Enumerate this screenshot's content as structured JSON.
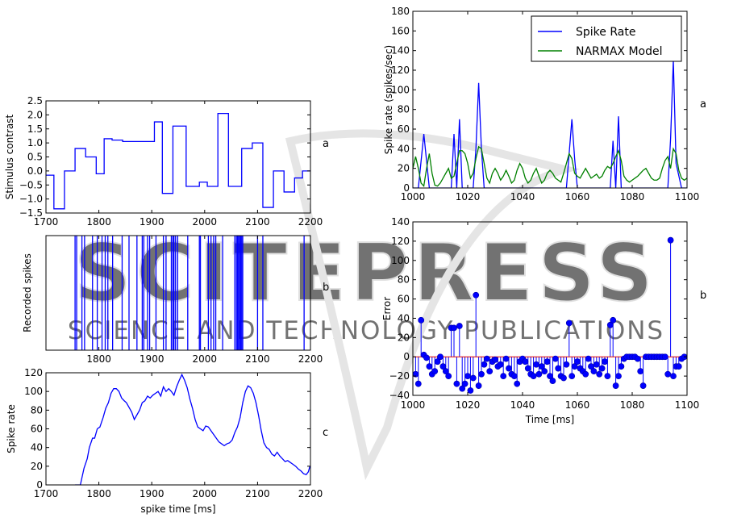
{
  "watermark": {
    "main": "SCITEPRESS",
    "sub": "SCIENCE AND TECHNOLOGY PUBLICATIONS"
  },
  "colors": {
    "blue": "#0000ff",
    "green": "#008000",
    "watermark": "#c8c8c8"
  },
  "chart_data": [
    {
      "id": "left-a",
      "type": "line",
      "panel_letter": "a",
      "ylabel": "Stimulus contrast",
      "xlim": [
        1700,
        2200
      ],
      "ylim": [
        -1.5,
        2.5
      ],
      "xticks": [
        1700,
        1800,
        1900,
        2000,
        2100,
        2200
      ],
      "yticks": [
        -1.5,
        -1.0,
        -0.5,
        0.0,
        0.5,
        1.0,
        1.5,
        2.0,
        2.5
      ],
      "ytick_labels": [
        "−1.5",
        "−1.0",
        "−0.5",
        "0.0",
        "0.5",
        "1.0",
        "1.5",
        "2.0",
        "2.5"
      ],
      "series": [
        {
          "step": true,
          "x": [
            1700,
            1715,
            1735,
            1755,
            1775,
            1795,
            1810,
            1825,
            1845,
            1865,
            1905,
            1920,
            1940,
            1965,
            1990,
            2005,
            2025,
            2045,
            2070,
            2090,
            2110,
            2130,
            2150,
            2170,
            2185
          ],
          "values": [
            -0.15,
            -1.35,
            0.0,
            0.8,
            0.5,
            -0.1,
            1.15,
            1.1,
            1.05,
            1.05,
            1.75,
            -0.8,
            1.6,
            -0.55,
            -0.4,
            -0.55,
            2.05,
            -0.55,
            0.8,
            1.0,
            -1.3,
            0.0,
            -0.75,
            -0.25,
            0.0
          ]
        }
      ]
    },
    {
      "id": "left-b",
      "type": "line",
      "panel_letter": "b",
      "ylabel": "Recorded spikes",
      "xlim": [
        1700,
        2200
      ],
      "xticks": [
        1800,
        1900,
        2000,
        2100,
        2200
      ],
      "spike_times": [
        1755,
        1758,
        1768,
        1773,
        1788,
        1797,
        1806,
        1812,
        1817,
        1826,
        1844,
        1857,
        1872,
        1882,
        1885,
        1892,
        1896,
        1908,
        1922,
        1927,
        1937,
        1940,
        1942,
        1945,
        1949,
        1968,
        1990,
        1992,
        2007,
        2012,
        2017,
        2021,
        2034,
        2057,
        2060,
        2062,
        2064,
        2066,
        2068,
        2070,
        2072,
        2100,
        2110,
        2188
      ]
    },
    {
      "id": "left-c",
      "type": "line",
      "panel_letter": "c",
      "xlabel": "spike time [ms]",
      "ylabel": "Spike rate",
      "xlim": [
        1700,
        2200
      ],
      "ylim": [
        0,
        120
      ],
      "xticks": [
        1700,
        1800,
        1900,
        2000,
        2100,
        2200
      ],
      "yticks": [
        0,
        20,
        40,
        60,
        80,
        100,
        120
      ],
      "series": [
        {
          "x": [
            1755,
            1765,
            1772,
            1778,
            1782,
            1788,
            1792,
            1797,
            1802,
            1808,
            1813,
            1818,
            1823,
            1828,
            1833,
            1838,
            1843,
            1848,
            1852,
            1857,
            1862,
            1867,
            1872,
            1877,
            1882,
            1887,
            1892,
            1897,
            1902,
            1907,
            1912,
            1917,
            1922,
            1927,
            1932,
            1937,
            1942,
            1947,
            1952,
            1957,
            1962,
            1967,
            1972,
            1977,
            1982,
            1987,
            1992,
            1997,
            2002,
            2007,
            2012,
            2017,
            2022,
            2027,
            2032,
            2037,
            2042,
            2047,
            2052,
            2057,
            2062,
            2067,
            2072,
            2077,
            2082,
            2087,
            2092,
            2097,
            2102,
            2107,
            2112,
            2117,
            2122,
            2127,
            2132,
            2137,
            2142,
            2147,
            2152,
            2157,
            2162,
            2167,
            2172,
            2177,
            2182,
            2187,
            2192,
            2196,
            2199
          ],
          "values": [
            0,
            0,
            18,
            28,
            40,
            50,
            50,
            60,
            62,
            72,
            82,
            88,
            98,
            103,
            103,
            100,
            93,
            90,
            88,
            83,
            78,
            70,
            75,
            80,
            88,
            90,
            95,
            93,
            96,
            98,
            100,
            95,
            105,
            100,
            103,
            100,
            96,
            105,
            112,
            118,
            112,
            104,
            92,
            82,
            70,
            62,
            60,
            58,
            63,
            62,
            58,
            54,
            50,
            46,
            44,
            42,
            44,
            45,
            48,
            56,
            62,
            72,
            88,
            100,
            106,
            104,
            98,
            88,
            74,
            58,
            45,
            40,
            38,
            33,
            31,
            35,
            31,
            28,
            25,
            26,
            24,
            22,
            20,
            17,
            15,
            12,
            11,
            14,
            20
          ]
        }
      ]
    },
    {
      "id": "right-a",
      "type": "line",
      "panel_letter": "a",
      "ylabel": "Spike rate (spikes/sec)",
      "xlim": [
        1000,
        1100
      ],
      "ylim": [
        0,
        180
      ],
      "xticks": [
        1000,
        1020,
        1040,
        1060,
        1080,
        1100
      ],
      "yticks": [
        0,
        20,
        40,
        60,
        80,
        100,
        120,
        140,
        160,
        180
      ],
      "legend": "top-right",
      "series": [
        {
          "name": "Spike Rate",
          "color": "#0000ff",
          "x": [
            1000,
            1002,
            1004,
            1006,
            1008,
            1010,
            1012,
            1014,
            1015,
            1016,
            1017,
            1018,
            1019,
            1020,
            1022,
            1023,
            1024,
            1025,
            1026,
            1028,
            1030,
            1040,
            1050,
            1056,
            1057,
            1058,
            1059,
            1060,
            1070,
            1072,
            1073,
            1074,
            1075,
            1076,
            1078,
            1090,
            1093,
            1094,
            1095,
            1096,
            1098,
            1100
          ],
          "values": [
            0,
            0,
            55,
            0,
            0,
            0,
            0,
            0,
            55,
            0,
            70,
            0,
            0,
            0,
            0,
            40,
            107,
            40,
            0,
            0,
            0,
            0,
            0,
            0,
            35,
            70,
            30,
            0,
            0,
            0,
            48,
            0,
            73,
            0,
            0,
            0,
            0,
            50,
            130,
            25,
            0,
            0
          ]
        },
        {
          "name": "NARMAX Model",
          "color": "#008000",
          "x": [
            1000,
            1001,
            1002,
            1003,
            1004,
            1005,
            1006,
            1007,
            1008,
            1009,
            1010,
            1011,
            1012,
            1013,
            1014,
            1015,
            1016,
            1017,
            1018,
            1019,
            1020,
            1021,
            1022,
            1023,
            1024,
            1025,
            1026,
            1027,
            1028,
            1029,
            1030,
            1031,
            1032,
            1033,
            1034,
            1035,
            1036,
            1037,
            1038,
            1039,
            1040,
            1041,
            1042,
            1043,
            1044,
            1045,
            1046,
            1047,
            1048,
            1049,
            1050,
            1051,
            1052,
            1053,
            1054,
            1055,
            1056,
            1057,
            1058,
            1059,
            1060,
            1061,
            1062,
            1063,
            1064,
            1065,
            1066,
            1067,
            1068,
            1069,
            1070,
            1071,
            1072,
            1073,
            1074,
            1075,
            1076,
            1077,
            1078,
            1079,
            1080,
            1081,
            1082,
            1083,
            1084,
            1085,
            1086,
            1087,
            1088,
            1089,
            1090,
            1091,
            1092,
            1093,
            1094,
            1095,
            1096,
            1097,
            1098,
            1099,
            1100
          ],
          "values": [
            20,
            32,
            20,
            5,
            2,
            20,
            35,
            15,
            3,
            2,
            5,
            10,
            15,
            20,
            10,
            12,
            25,
            38,
            38,
            35,
            25,
            10,
            15,
            30,
            42,
            40,
            25,
            10,
            5,
            15,
            20,
            15,
            8,
            12,
            18,
            12,
            5,
            8,
            18,
            25,
            20,
            10,
            5,
            8,
            15,
            20,
            12,
            5,
            8,
            15,
            18,
            15,
            10,
            8,
            6,
            15,
            25,
            35,
            30,
            15,
            12,
            10,
            15,
            20,
            15,
            10,
            12,
            14,
            10,
            12,
            18,
            22,
            20,
            25,
            32,
            38,
            28,
            12,
            8,
            6,
            8,
            10,
            12,
            15,
            18,
            20,
            15,
            10,
            8,
            8,
            10,
            20,
            28,
            32,
            20,
            40,
            35,
            18,
            10,
            8,
            10
          ]
        }
      ]
    },
    {
      "id": "right-b",
      "type": "scatter",
      "panel_letter": "b",
      "xlabel": "Time [ms]",
      "ylabel": "Error",
      "xlim": [
        1000,
        1100
      ],
      "ylim": [
        -40,
        140
      ],
      "xticks": [
        1000,
        1020,
        1040,
        1060,
        1080,
        1100
      ],
      "yticks": [
        -40,
        -20,
        0,
        20,
        40,
        60,
        80,
        100,
        120,
        140
      ],
      "ytick_labels": [
        "−40",
        "−20",
        "0",
        "20",
        "40",
        "60",
        "80",
        "100",
        "120",
        "140"
      ],
      "stem": true,
      "series": [
        {
          "x": [
            1001,
            1002,
            1003,
            1004,
            1005,
            1006,
            1007,
            1008,
            1009,
            1010,
            1011,
            1012,
            1013,
            1014,
            1015,
            1016,
            1017,
            1018,
            1019,
            1020,
            1021,
            1022,
            1023,
            1024,
            1025,
            1026,
            1027,
            1028,
            1029,
            1030,
            1031,
            1032,
            1033,
            1034,
            1035,
            1036,
            1037,
            1038,
            1039,
            1040,
            1041,
            1042,
            1043,
            1044,
            1045,
            1046,
            1047,
            1048,
            1049,
            1050,
            1051,
            1052,
            1053,
            1054,
            1055,
            1056,
            1057,
            1058,
            1059,
            1060,
            1061,
            1062,
            1063,
            1064,
            1065,
            1066,
            1067,
            1068,
            1069,
            1070,
            1071,
            1072,
            1073,
            1074,
            1075,
            1076,
            1077,
            1078,
            1079,
            1080,
            1081,
            1082,
            1083,
            1084,
            1085,
            1086,
            1087,
            1088,
            1089,
            1090,
            1091,
            1092,
            1093,
            1094,
            1095,
            1096,
            1097,
            1098,
            1099
          ],
          "values": [
            -18,
            -28,
            38,
            2,
            -1,
            -10,
            -18,
            -15,
            -5,
            0,
            -10,
            -15,
            -20,
            30,
            30,
            -28,
            32,
            -33,
            -28,
            -20,
            -35,
            -22,
            64,
            -30,
            -18,
            -8,
            -2,
            -15,
            -5,
            -3,
            -10,
            -8,
            -20,
            -2,
            -12,
            -18,
            -20,
            -28,
            -5,
            -2,
            -5,
            -12,
            -18,
            -20,
            -8,
            -18,
            -10,
            -15,
            -5,
            -20,
            -25,
            -2,
            -12,
            -20,
            -22,
            -8,
            35,
            -20,
            -10,
            -5,
            -12,
            -15,
            -18,
            -2,
            -10,
            -15,
            -8,
            -18,
            -12,
            -5,
            -20,
            33,
            38,
            -30,
            -20,
            -10,
            -2,
            0,
            0,
            0,
            0,
            -2,
            -15,
            -30,
            0,
            0,
            0,
            0,
            0,
            0,
            0,
            0,
            -18,
            121,
            -20,
            -10,
            -10,
            -2,
            0
          ]
        }
      ]
    }
  ]
}
